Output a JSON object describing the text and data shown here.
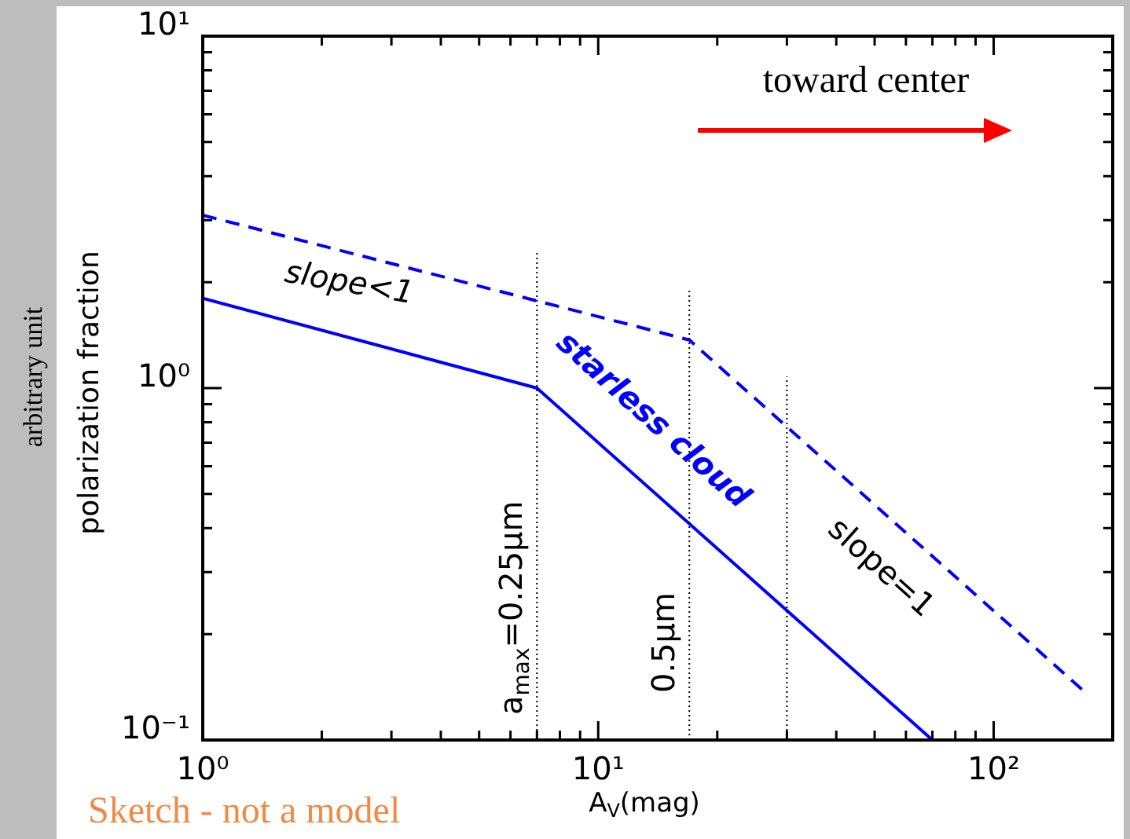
{
  "chart_data": {
    "type": "line",
    "xlabel": "A$_{V}$(mag)",
    "ylabel": "polarization fraction",
    "log": "xy",
    "xlim": [
      1,
      200
    ],
    "ylim": [
      0.1,
      10
    ],
    "xticks": [
      {
        "value": 1,
        "label": "10⁰"
      },
      {
        "value": 2,
        "label": null
      },
      {
        "value": 3,
        "label": null
      },
      {
        "value": 4,
        "label": null
      },
      {
        "value": 5,
        "label": null
      },
      {
        "value": 6,
        "label": null
      },
      {
        "value": 7,
        "label": null
      },
      {
        "value": 8,
        "label": null
      },
      {
        "value": 9,
        "label": null
      },
      {
        "value": 10,
        "label": "10¹"
      },
      {
        "value": 20,
        "label": null
      },
      {
        "value": 30,
        "label": null
      },
      {
        "value": 40,
        "label": null
      },
      {
        "value": 50,
        "label": null
      },
      {
        "value": 60,
        "label": null
      },
      {
        "value": 70,
        "label": null
      },
      {
        "value": 80,
        "label": null
      },
      {
        "value": 90,
        "label": null
      },
      {
        "value": 100,
        "label": "10²"
      }
    ],
    "yticks": [
      {
        "value": 0.1,
        "label": "10⁻¹"
      },
      {
        "value": 0.2,
        "label": null
      },
      {
        "value": 0.3,
        "label": null
      },
      {
        "value": 0.4,
        "label": null
      },
      {
        "value": 0.5,
        "label": null
      },
      {
        "value": 0.6,
        "label": null
      },
      {
        "value": 0.7,
        "label": null
      },
      {
        "value": 0.8,
        "label": null
      },
      {
        "value": 0.9,
        "label": null
      },
      {
        "value": 1,
        "label": "10⁰"
      },
      {
        "value": 2,
        "label": null
      },
      {
        "value": 3,
        "label": null
      },
      {
        "value": 4,
        "label": null
      },
      {
        "value": 5,
        "label": null
      },
      {
        "value": 6,
        "label": null
      },
      {
        "value": 7,
        "label": null
      },
      {
        "value": 8,
        "label": null
      },
      {
        "value": 9,
        "label": null
      },
      {
        "value": 10,
        "label": "10¹"
      }
    ],
    "legend": false,
    "marker": "none",
    "series": [
      {
        "color": "#0000ff",
        "x": [
          1,
          7,
          70
        ],
        "values": [
          1.8,
          1.0,
          0.1
        ],
        "line_style": "solid"
      },
      {
        "color": "#0000ff",
        "x": [
          1,
          17,
          170
        ],
        "values": [
          3.1,
          1.37,
          0.137
        ],
        "line_style": "dashed"
      }
    ],
    "ref_lines": [
      {
        "axis": "x",
        "value": 7,
        "color": "#000000",
        "line_style": "dotted"
      },
      {
        "axis": "x",
        "value": 17,
        "color": "#000000",
        "line_style": "dotted"
      },
      {
        "axis": "x",
        "value": 30,
        "color": "#000000",
        "line_style": "dotted"
      }
    ],
    "annotations": [
      "toward center",
      "slope<1",
      "starless cloud",
      "slope=1",
      "Sketch - not a model",
      "arbitrary unit",
      "a$_{max}$=0.25μm",
      "0.5μm"
    ]
  }
}
